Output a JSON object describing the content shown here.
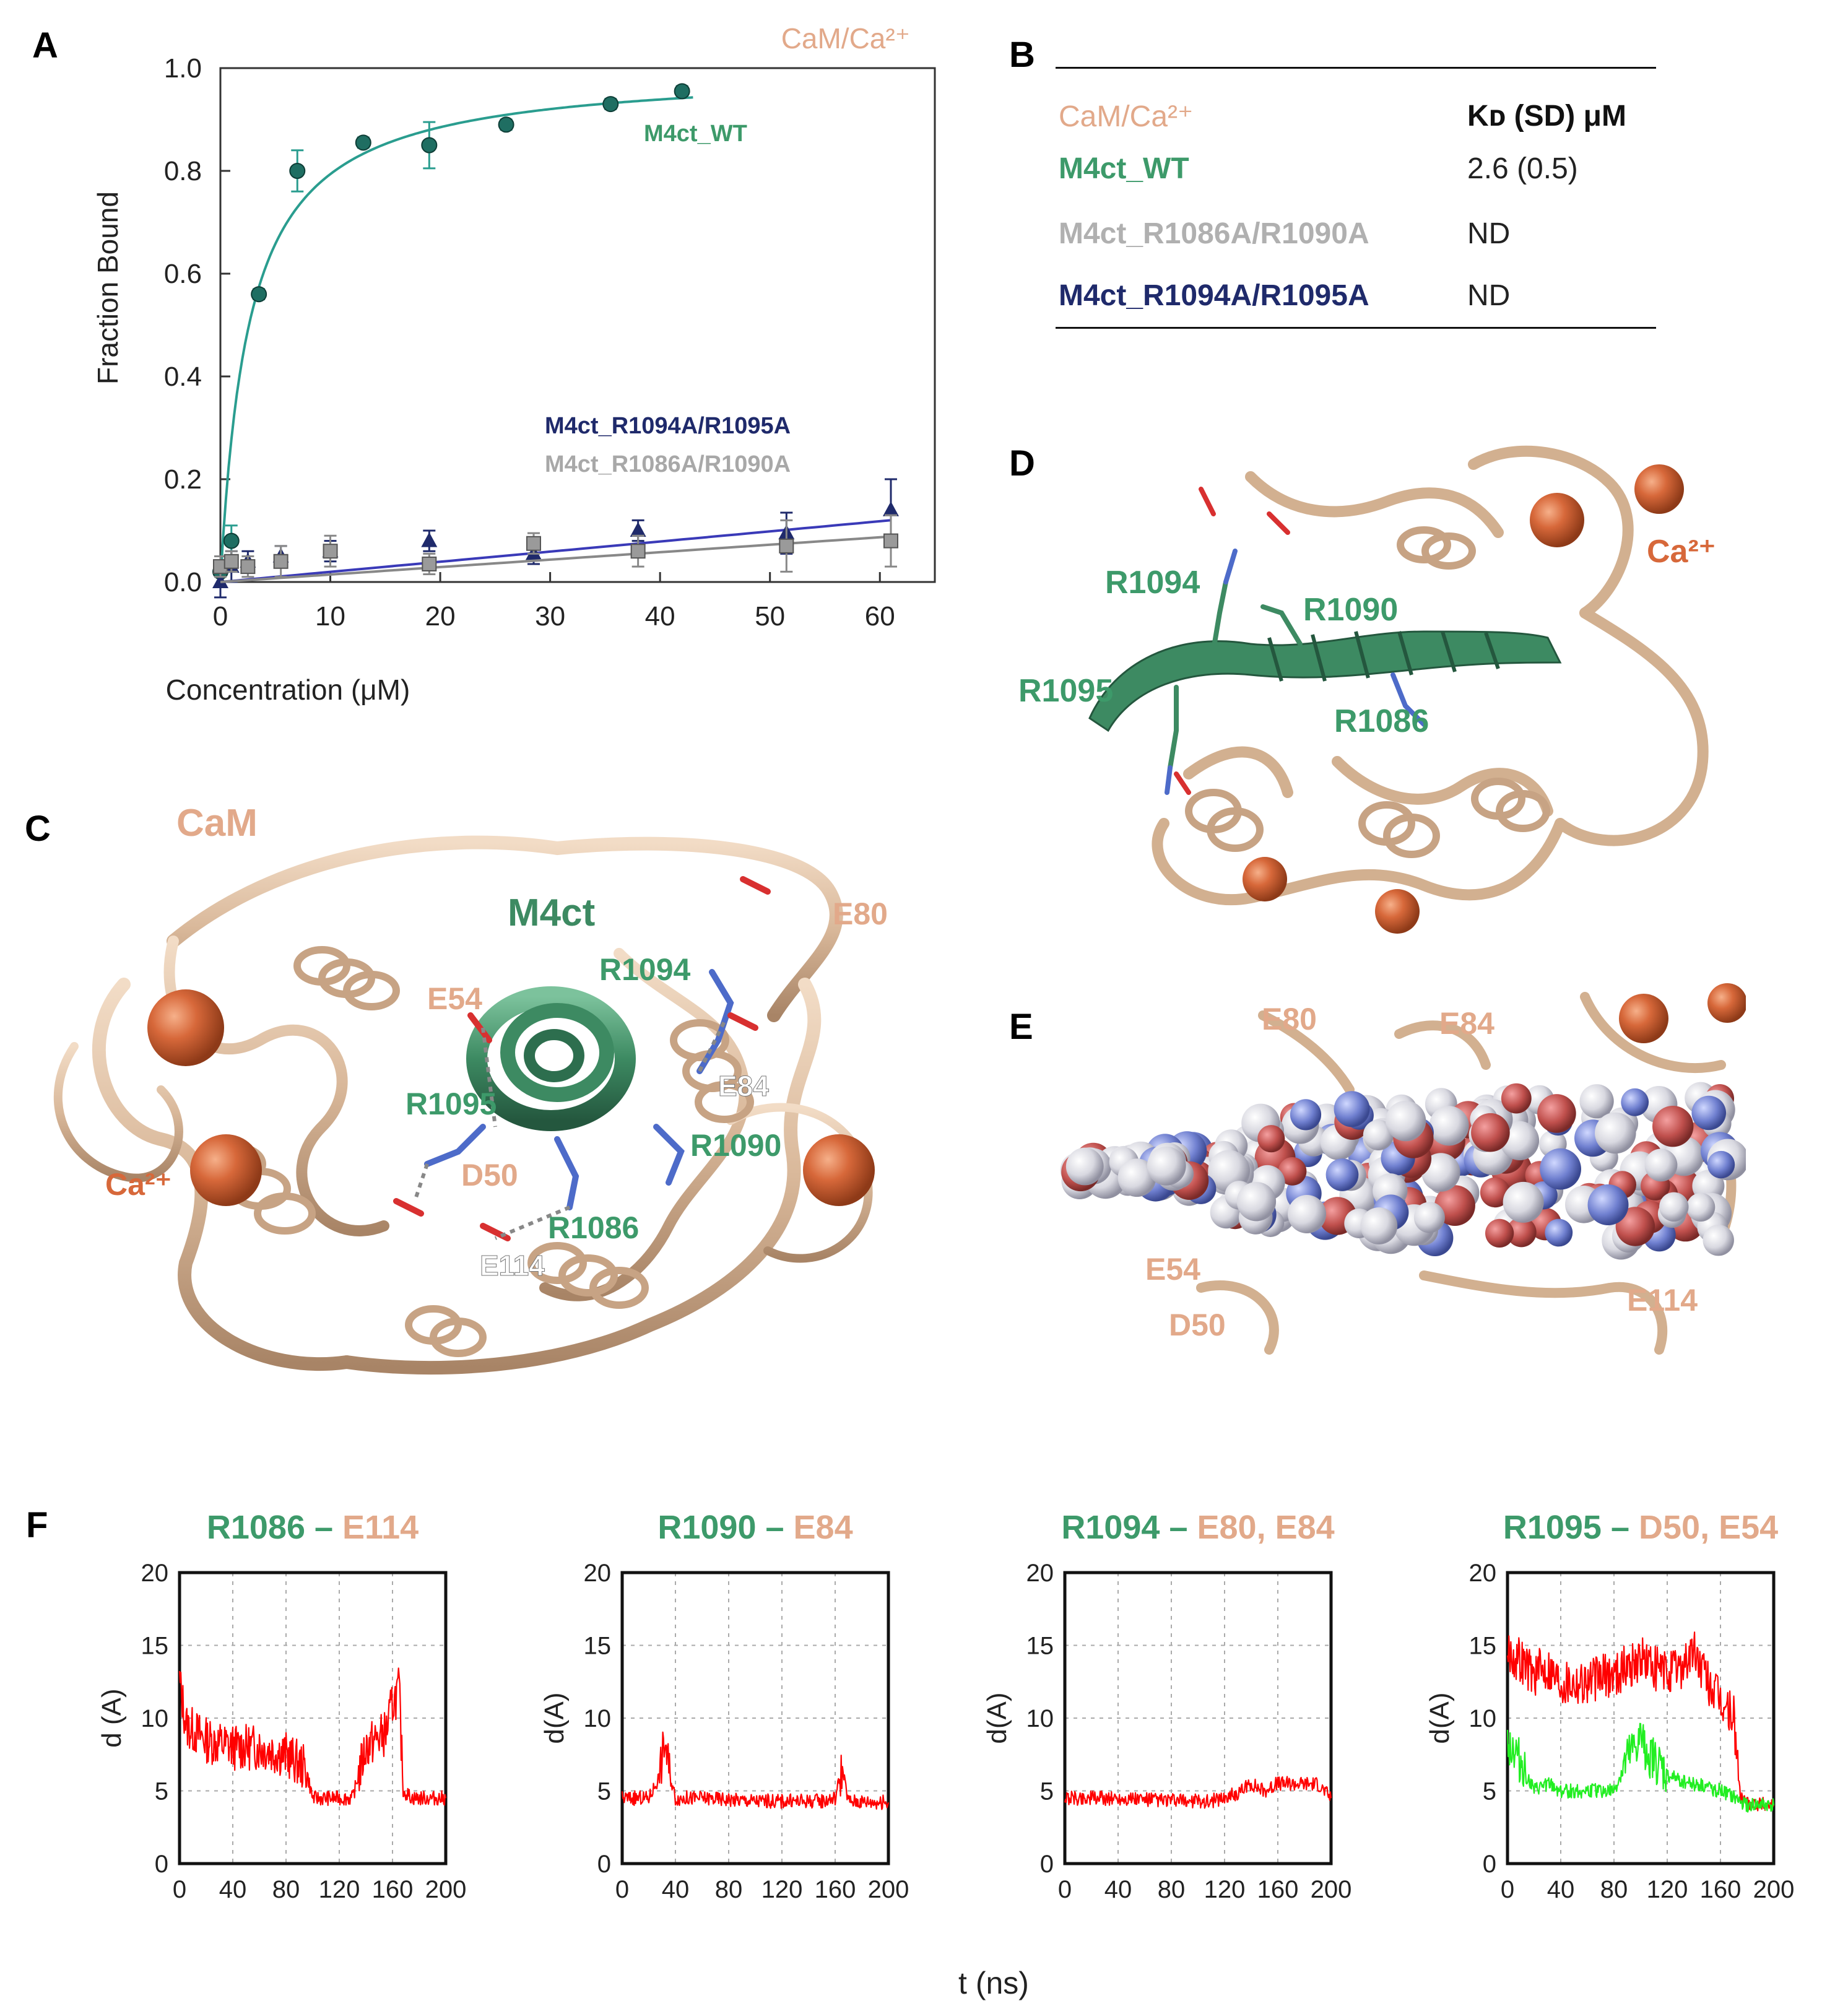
{
  "panels": {
    "A": "A",
    "B": "B",
    "C": "C",
    "D": "D",
    "E": "E",
    "F": "F"
  },
  "colors": {
    "wt": "#2a9d8f",
    "wt_label": "#3d9a6a",
    "r1094": "#1f2a6b",
    "r1086": "#a8a8a8",
    "cam": "#d9b89a",
    "calcium": "#d7683a",
    "md_red": "#ff0000",
    "md_green": "#22ee22"
  },
  "panelA": {
    "corner_label": "CaM/Ca²⁺",
    "chart_data": {
      "type": "scatter",
      "xlabel": "Concentration (μM)",
      "ylabel": "Fraction Bound",
      "xlim": [
        0,
        65
      ],
      "ylim": [
        0,
        1.0
      ],
      "xticks": [
        0,
        10,
        20,
        30,
        40,
        50,
        60
      ],
      "yticks": [
        "0.0",
        "0.2",
        "0.4",
        "0.6",
        "0.8",
        "1.0"
      ],
      "series": [
        {
          "name": "M4ct_WT",
          "marker": "circle",
          "x": [
            0,
            1,
            3.5,
            7,
            13,
            19,
            26,
            35.5,
            42
          ],
          "y": [
            0.02,
            0.08,
            0.56,
            0.8,
            0.855,
            0.85,
            0.89,
            0.93,
            0.955
          ],
          "err": [
            0.03,
            0.03,
            0.01,
            0.04,
            0.01,
            0.045,
            0.01,
            0.01,
            0.01
          ],
          "fit": {
            "model": "binding",
            "Bmax": 1.0,
            "Kd": 2.6
          }
        },
        {
          "name": "M4ct_R1094A/R1095A",
          "marker": "triangle",
          "x": [
            0,
            1,
            2.5,
            5.5,
            10,
            19,
            28.5,
            38,
            51.5,
            61
          ],
          "y": [
            0.0,
            0.03,
            0.04,
            0.05,
            0.06,
            0.08,
            0.055,
            0.1,
            0.095,
            0.14
          ],
          "err": [
            0.03,
            0.03,
            0.02,
            0.02,
            0.02,
            0.02,
            0.02,
            0.02,
            0.04,
            0.06
          ],
          "fit": {
            "model": "linear",
            "intercept": 0.0,
            "slope": 0.00197
          }
        },
        {
          "name": "M4ct_R1086A/R1090A",
          "marker": "square",
          "x": [
            0,
            1,
            2.5,
            5.5,
            10,
            19,
            28.5,
            38,
            51.5,
            61
          ],
          "y": [
            0.03,
            0.04,
            0.03,
            0.04,
            0.06,
            0.035,
            0.075,
            0.06,
            0.07,
            0.08
          ],
          "err": [
            0.02,
            0.02,
            0.02,
            0.03,
            0.03,
            0.02,
            0.02,
            0.03,
            0.05,
            0.05
          ],
          "fit": {
            "model": "linear",
            "intercept": 0.0,
            "slope": 0.00145
          }
        }
      ]
    }
  },
  "panelB": {
    "header_left": "CaM/Ca²⁺",
    "header_right": "Kᴅ (SD) μM",
    "rows": [
      {
        "name": "M4ct_WT",
        "value": "2.6 (0.5)"
      },
      {
        "name": "M4ct_R1086A/R1090A",
        "value": "ND"
      },
      {
        "name": "M4ct_R1094A/R1095A",
        "value": "ND"
      }
    ]
  },
  "panelC": {
    "cam": "CaM",
    "m4ct": "M4ct",
    "ca": "Ca²⁺",
    "residues": {
      "E80": "E80",
      "R1094": "R1094",
      "E54": "E54",
      "E84": "E84",
      "R1095": "R1095",
      "R1090": "R1090",
      "D50": "D50",
      "R1086": "R1086",
      "E114": "E114"
    }
  },
  "panelD": {
    "R1094": "R1094",
    "R1090": "R1090",
    "R1095": "R1095",
    "R1086": "R1086",
    "ca": "Ca²⁺"
  },
  "panelE": {
    "E80": "E80",
    "E84": "E84",
    "E54": "E54",
    "D50": "D50",
    "E114": "E114"
  },
  "panelF": {
    "xlabel": "t (ns)",
    "xticks": [
      "0",
      "40",
      "80",
      "120",
      "160",
      "200"
    ],
    "yticks": [
      "0",
      "5",
      "10",
      "15",
      "20"
    ],
    "chart_data": [
      {
        "type": "line",
        "title_a": "R1086 –",
        "title_b": " E114",
        "ylabel": "d (A)",
        "xlim": [
          0,
          200
        ],
        "ylim": [
          0,
          20
        ],
        "series": [
          {
            "color": "red",
            "x": [
              0,
              5,
              20,
              40,
              60,
              80,
              95,
              100,
              120,
              130,
              140,
              155,
              160,
              165,
              168,
              175,
              185,
              200
            ],
            "y": [
              12.5,
              9.5,
              8.5,
              8.0,
              8.0,
              7.5,
              6.5,
              4.5,
              4.5,
              4.5,
              8.0,
              9.0,
              11.0,
              12.0,
              5.0,
              4.5,
              4.5,
              4.5
            ]
          }
        ]
      },
      {
        "type": "line",
        "title_a": "R1090 –",
        "title_b": " E84",
        "ylabel": "d(A)",
        "xlim": [
          0,
          200
        ],
        "ylim": [
          0,
          20
        ],
        "series": [
          {
            "color": "red",
            "x": [
              0,
              20,
              28,
              32,
              36,
              40,
              60,
              100,
              150,
              160,
              165,
              170,
              200
            ],
            "y": [
              4.5,
              4.5,
              6.0,
              8.5,
              6.0,
              4.5,
              4.5,
              4.3,
              4.3,
              4.5,
              6.5,
              4.3,
              4.2
            ]
          }
        ]
      },
      {
        "type": "line",
        "title_a": "R1094 –",
        "title_b": " E80, E84",
        "ylabel": "d(A)",
        "xlim": [
          0,
          200
        ],
        "ylim": [
          0,
          20
        ],
        "series": [
          {
            "color": "red",
            "x": [
              0,
              40,
              80,
              110,
              130,
              140,
              150,
              160,
              170,
              180,
              190,
              200
            ],
            "y": [
              4.5,
              4.5,
              4.3,
              4.3,
              4.8,
              5.5,
              5.0,
              5.5,
              5.5,
              5.5,
              5.5,
              4.5
            ]
          }
        ]
      },
      {
        "type": "line",
        "title_a": "R1095 –",
        "title_b": " D50, E54",
        "ylabel": "d(A)",
        "xlim": [
          0,
          200
        ],
        "ylim": [
          0,
          20
        ],
        "series": [
          {
            "color": "red",
            "x": [
              0,
              10,
              20,
              30,
              40,
              60,
              80,
              90,
              100,
              110,
              120,
              130,
              140,
              150,
              160,
              170,
              175,
              180,
              200
            ],
            "y": [
              14.5,
              14.0,
              13.0,
              13.5,
              12.5,
              12.5,
              13.0,
              13.5,
              14.0,
              13.5,
              13.0,
              13.5,
              14.5,
              12.5,
              11.0,
              10.0,
              4.5,
              4.2,
              4.0
            ]
          },
          {
            "color": "green",
            "x": [
              0,
              10,
              20,
              30,
              40,
              60,
              80,
              90,
              100,
              110,
              120,
              140,
              160,
              180,
              200
            ],
            "y": [
              8.5,
              7.0,
              5.0,
              5.5,
              5.0,
              5.0,
              5.0,
              7.0,
              8.5,
              7.0,
              6.0,
              5.5,
              5.0,
              4.0,
              4.0
            ]
          }
        ]
      }
    ]
  }
}
